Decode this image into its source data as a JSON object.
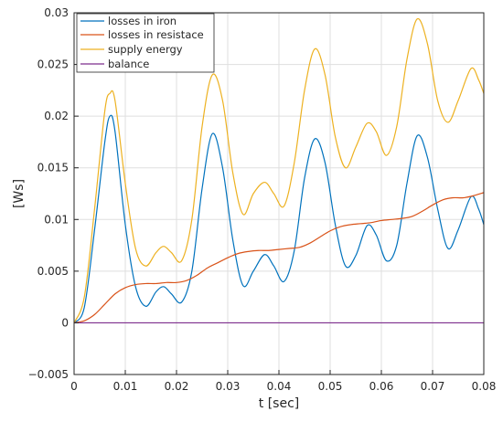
{
  "chart_data": {
    "type": "line",
    "title": "",
    "xlabel": "t [sec]",
    "ylabel": "[Ws]",
    "xlim": [
      0,
      0.08
    ],
    "ylim": [
      -0.005,
      0.03
    ],
    "xticks": [
      0,
      0.01,
      0.02,
      0.03,
      0.04,
      0.05,
      0.06,
      0.07,
      0.08
    ],
    "xtick_labels": [
      "0",
      "0.01",
      "0.02",
      "0.03",
      "0.04",
      "0.05",
      "0.06",
      "0.07",
      "0.08"
    ],
    "yticks": [
      -0.005,
      0,
      0.005,
      0.01,
      0.015,
      0.02,
      0.025,
      0.03
    ],
    "ytick_labels": [
      "−0.005",
      "0",
      "0.005",
      "0.01",
      "0.015",
      "0.02",
      "0.025",
      "0.03"
    ],
    "grid": true,
    "legend_position": "top-left",
    "series": [
      {
        "name": "losses in iron",
        "color": "#0072BD",
        "x": [
          0,
          0.002,
          0.004,
          0.006,
          0.007,
          0.008,
          0.01,
          0.012,
          0.014,
          0.016,
          0.0175,
          0.019,
          0.021,
          0.023,
          0.025,
          0.027,
          0.029,
          0.031,
          0.033,
          0.035,
          0.0372,
          0.039,
          0.041,
          0.043,
          0.045,
          0.047,
          0.049,
          0.051,
          0.053,
          0.055,
          0.0572,
          0.059,
          0.061,
          0.063,
          0.065,
          0.067,
          0.069,
          0.071,
          0.073,
          0.075,
          0.0775,
          0.079,
          0.08
        ],
        "y": [
          0,
          0.0015,
          0.009,
          0.0175,
          0.02,
          0.0185,
          0.0095,
          0.0035,
          0.0016,
          0.003,
          0.0035,
          0.0028,
          0.002,
          0.005,
          0.013,
          0.0183,
          0.015,
          0.008,
          0.0036,
          0.005,
          0.0066,
          0.0055,
          0.004,
          0.007,
          0.014,
          0.0178,
          0.0155,
          0.0095,
          0.0055,
          0.0065,
          0.0094,
          0.0085,
          0.006,
          0.0075,
          0.0135,
          0.0181,
          0.016,
          0.011,
          0.0072,
          0.009,
          0.0122,
          0.011,
          0.0095
        ]
      },
      {
        "name": "losses in resistace",
        "color": "#D95319",
        "x": [
          0,
          0.002,
          0.004,
          0.006,
          0.008,
          0.01,
          0.012,
          0.014,
          0.016,
          0.018,
          0.02,
          0.022,
          0.024,
          0.026,
          0.028,
          0.03,
          0.032,
          0.034,
          0.036,
          0.038,
          0.04,
          0.042,
          0.044,
          0.046,
          0.048,
          0.05,
          0.052,
          0.054,
          0.056,
          0.058,
          0.06,
          0.062,
          0.064,
          0.066,
          0.068,
          0.07,
          0.072,
          0.074,
          0.076,
          0.078,
          0.08
        ],
        "y": [
          0,
          0.0002,
          0.0008,
          0.0018,
          0.0028,
          0.0034,
          0.0037,
          0.0038,
          0.0038,
          0.0039,
          0.0039,
          0.0041,
          0.0046,
          0.0053,
          0.0058,
          0.0063,
          0.0067,
          0.0069,
          0.007,
          0.007,
          0.0071,
          0.0072,
          0.0073,
          0.0077,
          0.0083,
          0.0089,
          0.0093,
          0.0095,
          0.0096,
          0.0097,
          0.0099,
          0.01,
          0.0101,
          0.0103,
          0.0108,
          0.0114,
          0.0119,
          0.0121,
          0.0121,
          0.0123,
          0.0126
        ]
      },
      {
        "name": "supply energy",
        "color": "#EDB120",
        "x": [
          0,
          0.002,
          0.004,
          0.006,
          0.007,
          0.008,
          0.01,
          0.012,
          0.014,
          0.016,
          0.0175,
          0.019,
          0.021,
          0.023,
          0.025,
          0.027,
          0.029,
          0.031,
          0.033,
          0.035,
          0.0372,
          0.039,
          0.041,
          0.043,
          0.045,
          0.047,
          0.049,
          0.051,
          0.053,
          0.055,
          0.0572,
          0.059,
          0.061,
          0.063,
          0.065,
          0.067,
          0.069,
          0.071,
          0.073,
          0.075,
          0.0775,
          0.079,
          0.08
        ],
        "y": [
          0,
          0.0025,
          0.011,
          0.0205,
          0.0222,
          0.0215,
          0.0135,
          0.0072,
          0.0055,
          0.0068,
          0.0074,
          0.0068,
          0.006,
          0.01,
          0.019,
          0.024,
          0.0215,
          0.0145,
          0.0105,
          0.0125,
          0.0136,
          0.0125,
          0.0113,
          0.0155,
          0.0225,
          0.0265,
          0.024,
          0.018,
          0.015,
          0.017,
          0.0193,
          0.0185,
          0.0162,
          0.019,
          0.0255,
          0.0294,
          0.027,
          0.0215,
          0.0194,
          0.0215,
          0.0246,
          0.0235,
          0.0222
        ]
      },
      {
        "name": "balance",
        "color": "#7E2F8E",
        "x": [
          0,
          0.08
        ],
        "y": [
          0,
          0
        ]
      }
    ]
  }
}
